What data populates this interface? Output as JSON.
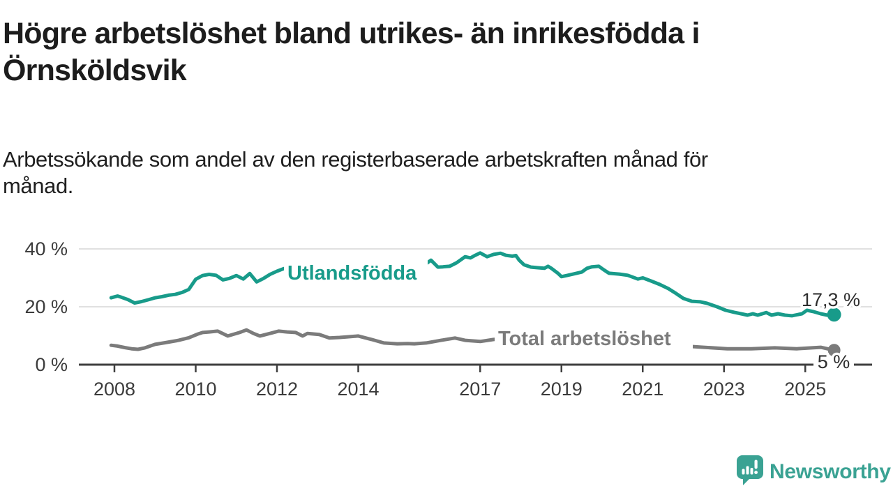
{
  "header": {
    "title_line1": "Högre arbetslöshet bland utrikes- än inrikesfödda i",
    "title_line2": "Örnsköldsvik",
    "subtitle_line1": "Arbetssökande som andel av den registerbaserade arbetskraften månad för",
    "subtitle_line2": "månad."
  },
  "branding": {
    "logo_text": "Newsworthy",
    "logo_color": "#3aa293",
    "logo_icon": "newsworthy-speech-bubble-bar-chart-icon"
  },
  "colors": {
    "accent_teal": "#189b8a",
    "series_gray": "#7b7b7b",
    "axis": "#3f3f3f",
    "gridline": "#e0e0e0",
    "tick_text": "#3b3b3b",
    "value_text": "#2d2d2d"
  },
  "chart_data": {
    "type": "line",
    "unit": "%",
    "x_axis": {
      "tick_years": [
        2008,
        2010,
        2012,
        2014,
        2017,
        2019,
        2021,
        2023,
        2025
      ],
      "range": [
        2007.9,
        2025.75
      ]
    },
    "y_axis": {
      "ticks": [
        {
          "value": 0,
          "label": "0 %"
        },
        {
          "value": 20,
          "label": "20 %"
        },
        {
          "value": 40,
          "label": "40 %"
        }
      ],
      "range": [
        0,
        42
      ],
      "grid": true
    },
    "series": [
      {
        "name": "Utlandsfödda",
        "color": "#189b8a",
        "end_value_label": "17,3 %",
        "points": [
          [
            2007.92,
            23.1
          ],
          [
            2008.08,
            23.7
          ],
          [
            2008.17,
            23.3
          ],
          [
            2008.33,
            22.5
          ],
          [
            2008.5,
            21.3
          ],
          [
            2008.67,
            21.8
          ],
          [
            2008.83,
            22.4
          ],
          [
            2009,
            23.1
          ],
          [
            2009.17,
            23.5
          ],
          [
            2009.33,
            24
          ],
          [
            2009.5,
            24.3
          ],
          [
            2009.67,
            25
          ],
          [
            2009.83,
            26
          ],
          [
            2010,
            29.5
          ],
          [
            2010.17,
            30.8
          ],
          [
            2010.33,
            31.2
          ],
          [
            2010.5,
            30.9
          ],
          [
            2010.67,
            29.3
          ],
          [
            2010.83,
            29.8
          ],
          [
            2011,
            30.8
          ],
          [
            2011.17,
            29.6
          ],
          [
            2011.33,
            31.5
          ],
          [
            2011.5,
            28.6
          ],
          [
            2011.67,
            29.8
          ],
          [
            2011.83,
            31.2
          ],
          [
            2012,
            32.3
          ],
          [
            2012.17,
            33.2
          ],
          [
            2012.33,
            33
          ],
          [
            2012.5,
            32.6
          ],
          [
            2012.67,
            33.3
          ],
          [
            2012.83,
            33.6
          ],
          [
            2013,
            33.2
          ],
          [
            2013.17,
            33.8
          ],
          [
            2013.33,
            34.2
          ],
          [
            2013.5,
            33.7
          ],
          [
            2013.67,
            33.4
          ],
          [
            2013.83,
            33.9
          ],
          [
            2014,
            34.3
          ],
          [
            2014.17,
            34
          ],
          [
            2014.33,
            33.6
          ],
          [
            2014.5,
            33.9
          ],
          [
            2014.67,
            34.4
          ],
          [
            2014.83,
            34.1
          ],
          [
            2015,
            33.8
          ],
          [
            2015.17,
            34.2
          ],
          [
            2015.33,
            34.6
          ],
          [
            2015.5,
            34.1
          ],
          [
            2015.63,
            34.5
          ],
          [
            2015.79,
            36.1
          ],
          [
            2015.96,
            33.7
          ],
          [
            2016.08,
            33.8
          ],
          [
            2016.25,
            34
          ],
          [
            2016.42,
            35.2
          ],
          [
            2016.63,
            37.3
          ],
          [
            2016.76,
            36.9
          ],
          [
            2016.88,
            37.8
          ],
          [
            2017,
            38.6
          ],
          [
            2017.17,
            37.3
          ],
          [
            2017.33,
            38.1
          ],
          [
            2017.5,
            38.5
          ],
          [
            2017.63,
            37.8
          ],
          [
            2017.79,
            37.5
          ],
          [
            2017.88,
            37.7
          ],
          [
            2017.96,
            36.1
          ],
          [
            2018.08,
            34.5
          ],
          [
            2018.25,
            33.7
          ],
          [
            2018.42,
            33.5
          ],
          [
            2018.58,
            33.3
          ],
          [
            2018.67,
            34
          ],
          [
            2018.75,
            33.3
          ],
          [
            2018.92,
            31.5
          ],
          [
            2019,
            30.4
          ],
          [
            2019.13,
            30.8
          ],
          [
            2019.29,
            31.3
          ],
          [
            2019.5,
            32
          ],
          [
            2019.63,
            33.3
          ],
          [
            2019.75,
            33.8
          ],
          [
            2019.92,
            34
          ],
          [
            2020.04,
            32.8
          ],
          [
            2020.17,
            31.6
          ],
          [
            2020.42,
            31.3
          ],
          [
            2020.63,
            30.9
          ],
          [
            2020.88,
            29.6
          ],
          [
            2021,
            30
          ],
          [
            2021.21,
            28.9
          ],
          [
            2021.42,
            27.7
          ],
          [
            2021.63,
            26.3
          ],
          [
            2021.83,
            24.5
          ],
          [
            2022,
            22.9
          ],
          [
            2022.21,
            21.9
          ],
          [
            2022.42,
            21.7
          ],
          [
            2022.58,
            21.2
          ],
          [
            2022.83,
            20
          ],
          [
            2023.04,
            18.8
          ],
          [
            2023.25,
            18.1
          ],
          [
            2023.42,
            17.6
          ],
          [
            2023.58,
            17.1
          ],
          [
            2023.71,
            17.6
          ],
          [
            2023.83,
            17.1
          ],
          [
            2024.04,
            18
          ],
          [
            2024.17,
            17.1
          ],
          [
            2024.33,
            17.6
          ],
          [
            2024.5,
            17.1
          ],
          [
            2024.67,
            16.9
          ],
          [
            2024.92,
            17.6
          ],
          [
            2025.04,
            18.8
          ],
          [
            2025.21,
            18.3
          ],
          [
            2025.38,
            17.6
          ],
          [
            2025.54,
            17.1
          ],
          [
            2025.71,
            17.3
          ]
        ]
      },
      {
        "name": "Total arbetslöshet",
        "color": "#7b7b7b",
        "end_value_label": "5 %",
        "points": [
          [
            2007.92,
            6.7
          ],
          [
            2008.08,
            6.4
          ],
          [
            2008.25,
            5.9
          ],
          [
            2008.42,
            5.5
          ],
          [
            2008.58,
            5.3
          ],
          [
            2008.75,
            5.8
          ],
          [
            2009,
            7
          ],
          [
            2009.25,
            7.6
          ],
          [
            2009.58,
            8.4
          ],
          [
            2009.83,
            9.3
          ],
          [
            2010.04,
            10.5
          ],
          [
            2010.17,
            11.1
          ],
          [
            2010.33,
            11.3
          ],
          [
            2010.54,
            11.6
          ],
          [
            2010.79,
            9.9
          ],
          [
            2011.08,
            11.1
          ],
          [
            2011.25,
            12
          ],
          [
            2011.42,
            10.8
          ],
          [
            2011.58,
            9.9
          ],
          [
            2011.83,
            10.8
          ],
          [
            2012.04,
            11.6
          ],
          [
            2012.25,
            11.3
          ],
          [
            2012.46,
            11.1
          ],
          [
            2012.63,
            9.9
          ],
          [
            2012.75,
            10.8
          ],
          [
            2013.04,
            10.4
          ],
          [
            2013.29,
            9.2
          ],
          [
            2013.54,
            9.4
          ],
          [
            2013.71,
            9.6
          ],
          [
            2014,
            9.9
          ],
          [
            2014.33,
            8.7
          ],
          [
            2014.63,
            7.5
          ],
          [
            2014.96,
            7.2
          ],
          [
            2015.21,
            7.3
          ],
          [
            2015.38,
            7.2
          ],
          [
            2015.67,
            7.5
          ],
          [
            2016.04,
            8.4
          ],
          [
            2016.38,
            9.2
          ],
          [
            2016.63,
            8.4
          ],
          [
            2017,
            8
          ],
          [
            2017.33,
            8.7
          ],
          [
            2017.54,
            8.9
          ],
          [
            2017.75,
            8.6
          ],
          [
            2018,
            8.2
          ],
          [
            2018.33,
            7.8
          ],
          [
            2018.67,
            7.4
          ],
          [
            2019,
            7.2
          ],
          [
            2019.33,
            7
          ],
          [
            2019.67,
            7.1
          ],
          [
            2020,
            7.4
          ],
          [
            2020.33,
            7.8
          ],
          [
            2020.67,
            7.5
          ],
          [
            2021,
            7.2
          ],
          [
            2021.33,
            6.9
          ],
          [
            2021.67,
            6.6
          ],
          [
            2021.92,
            6.4
          ],
          [
            2022.17,
            6.3
          ],
          [
            2022.5,
            6
          ],
          [
            2023.08,
            5.5
          ],
          [
            2023.67,
            5.5
          ],
          [
            2024.25,
            5.8
          ],
          [
            2024.79,
            5.5
          ],
          [
            2025.38,
            6
          ],
          [
            2025.71,
            5
          ]
        ]
      }
    ]
  }
}
